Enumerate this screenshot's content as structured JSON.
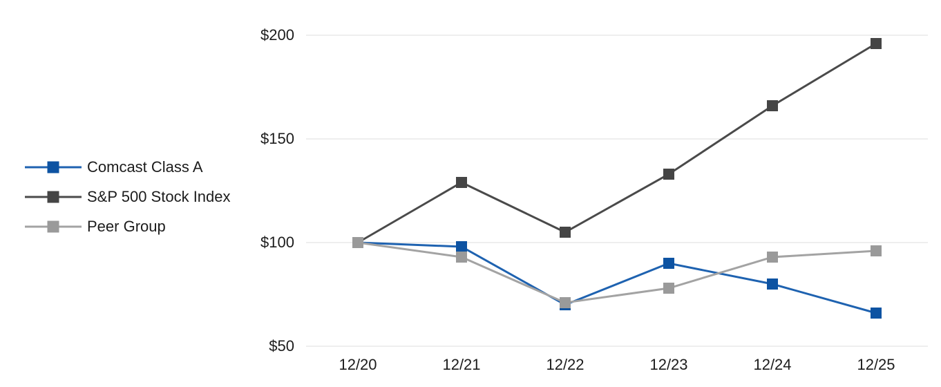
{
  "chart_data": {
    "type": "line",
    "title": "",
    "categories": [
      "12/20",
      "12/21",
      "12/22",
      "12/23",
      "12/24",
      "12/25"
    ],
    "series": [
      {
        "name": "Comcast Class A",
        "values": [
          100,
          98,
          70,
          90,
          80,
          66
        ],
        "line_color": "#1e62b0",
        "marker_color": "#0d53a2"
      },
      {
        "name": "S&P 500 Stock Index",
        "values": [
          100,
          129,
          105,
          133,
          166,
          196
        ],
        "line_color": "#4a4a4a",
        "marker_color": "#454545"
      },
      {
        "name": "Peer Group",
        "values": [
          100,
          93,
          71,
          78,
          93,
          96
        ],
        "line_color": "#a3a3a3",
        "marker_color": "#9a9a9a"
      }
    ],
    "y_ticks": [
      {
        "label": "$50",
        "value": 50
      },
      {
        "label": "$100",
        "value": 100
      },
      {
        "label": "$150",
        "value": 150
      },
      {
        "label": "$200",
        "value": 200
      }
    ],
    "ylim": [
      50,
      200
    ],
    "xlabel": "",
    "ylabel": "",
    "grid": "horizontal",
    "legend_position": "left",
    "colors": {
      "gridline": "#e8e8e8",
      "text": "#1c1c1c",
      "background": "#ffffff"
    }
  }
}
